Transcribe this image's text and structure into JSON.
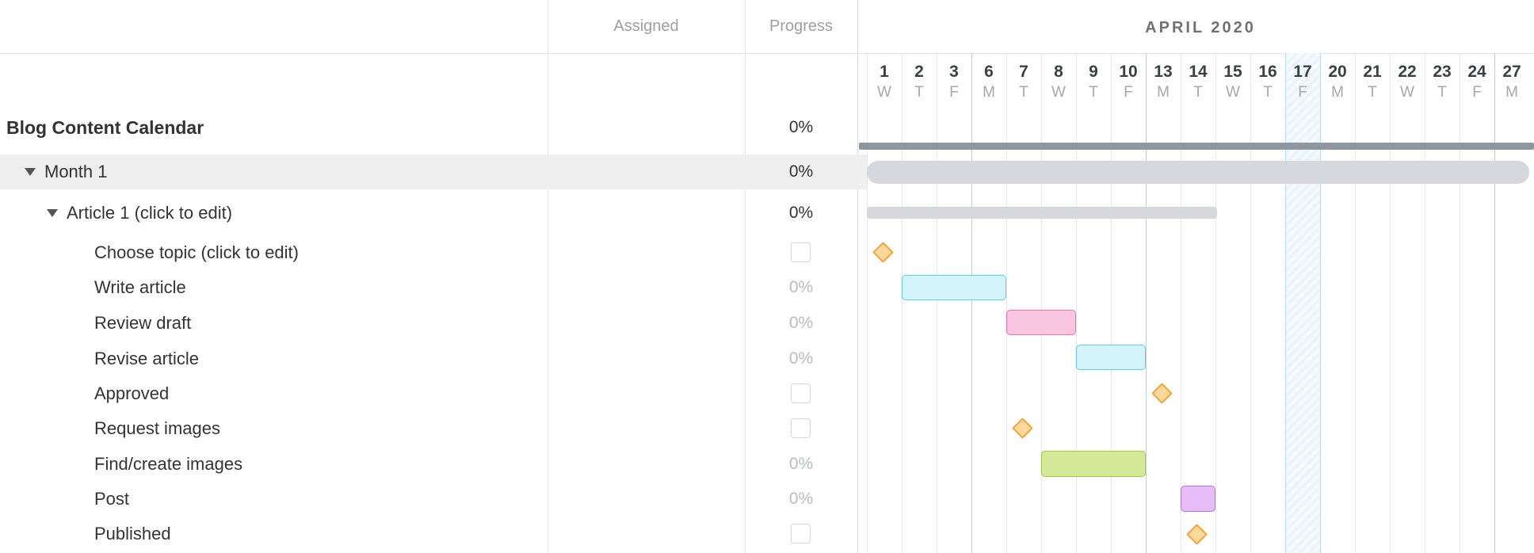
{
  "columns": {
    "assigned": "Assigned",
    "progress": "Progress"
  },
  "timeline": {
    "month": "APRIL 2020",
    "days": [
      {
        "n": "1",
        "w": "W"
      },
      {
        "n": "2",
        "w": "T"
      },
      {
        "n": "3",
        "w": "F"
      },
      {
        "n": "6",
        "w": "M"
      },
      {
        "n": "7",
        "w": "T"
      },
      {
        "n": "8",
        "w": "W"
      },
      {
        "n": "9",
        "w": "T"
      },
      {
        "n": "10",
        "w": "F"
      },
      {
        "n": "13",
        "w": "M"
      },
      {
        "n": "14",
        "w": "T"
      },
      {
        "n": "15",
        "w": "W"
      },
      {
        "n": "16",
        "w": "T"
      },
      {
        "n": "17",
        "w": "F"
      },
      {
        "n": "20",
        "w": "M"
      },
      {
        "n": "21",
        "w": "T"
      },
      {
        "n": "22",
        "w": "W"
      },
      {
        "n": "23",
        "w": "T"
      },
      {
        "n": "24",
        "w": "F"
      },
      {
        "n": "27",
        "w": "M"
      }
    ],
    "today_index": 12
  },
  "rows": [
    {
      "name": "Blog Content Calendar",
      "progress": "0%",
      "level": 0
    },
    {
      "name": "Month 1",
      "progress": "0%",
      "level": 1
    },
    {
      "name": "Article 1 (click to edit)",
      "progress": "0%",
      "level": 2
    },
    {
      "name": "Choose topic (click to edit)",
      "progress": "",
      "level": 3
    },
    {
      "name": "Write article",
      "progress": "0%",
      "level": 3
    },
    {
      "name": "Review draft",
      "progress": "0%",
      "level": 3
    },
    {
      "name": "Revise article",
      "progress": "0%",
      "level": 3
    },
    {
      "name": "Approved",
      "progress": "",
      "level": 3
    },
    {
      "name": "Request images",
      "progress": "",
      "level": 3
    },
    {
      "name": "Find/create images",
      "progress": "0%",
      "level": 3
    },
    {
      "name": "Post",
      "progress": "0%",
      "level": 3
    },
    {
      "name": "Published",
      "progress": "",
      "level": 3
    }
  ],
  "colors": {
    "project_bar": "#8e979f",
    "summary_bar": "#d7d8de",
    "milestone": "#fbd99a",
    "cyan": "#d3f4fa",
    "pink": "#f9c6e2",
    "green": "#d4e99a",
    "purple": "#e7bdf7"
  }
}
